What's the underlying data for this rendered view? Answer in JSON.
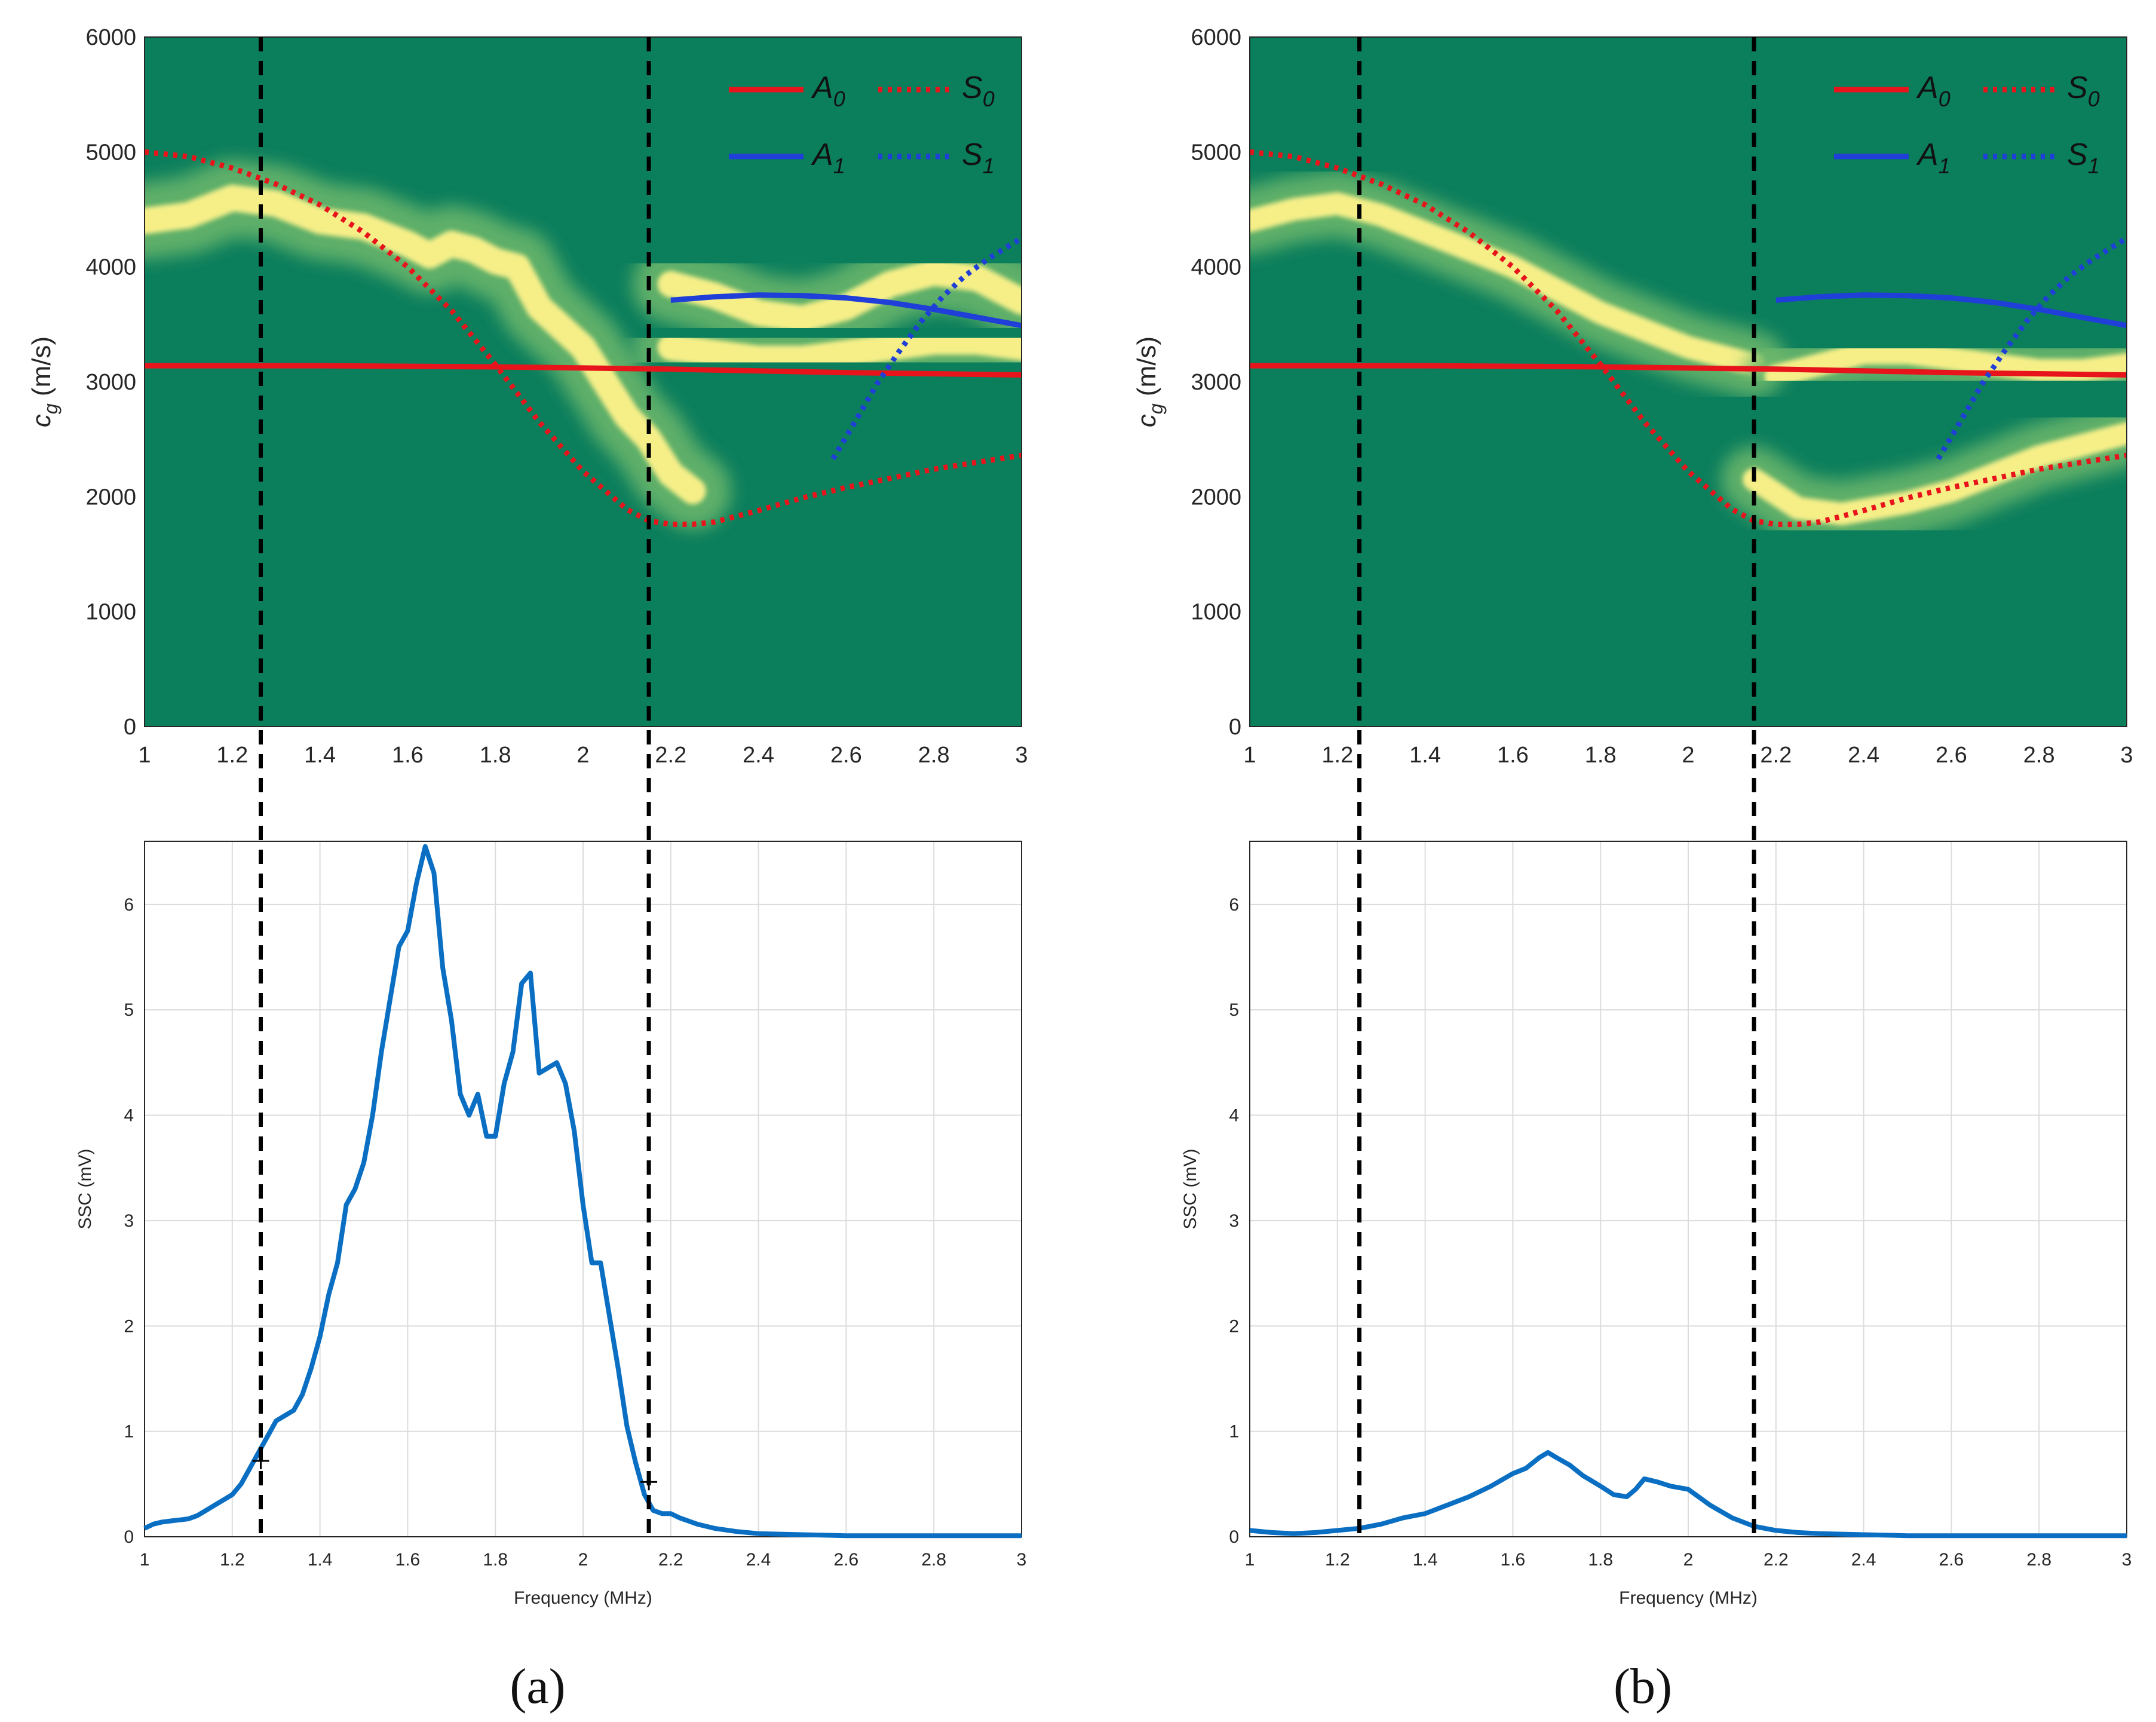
{
  "colors": {
    "map_bg": "#0b7e5c",
    "map_mid": "#6db86c",
    "map_hot": "#fff38a",
    "A0": "#e8141b",
    "S0": "#e8141b",
    "A1": "#1f3fd8",
    "S1": "#1f3fd8",
    "ssc": "#0a6fc2",
    "marker": "#000000"
  },
  "panels": [
    {
      "label": "(a)",
      "chart_data": [
        {
          "type": "heatmap",
          "ylabel_main": "c",
          "ylabel_sub": "g",
          "ylabel_unit": "(m/s)",
          "xlim": [
            1,
            3
          ],
          "ylim": [
            0,
            6000
          ],
          "xticks": [
            "1",
            "1.2",
            "1.4",
            "1.6",
            "1.8",
            "2",
            "2.2",
            "2.4",
            "2.6",
            "2.8",
            "3"
          ],
          "yticks": [
            "0",
            "1000",
            "2000",
            "3000",
            "4000",
            "5000",
            "6000"
          ],
          "legend": [
            {
              "main": "A",
              "sub": "0",
              "style": "solid",
              "colorKey": "A0"
            },
            {
              "main": "S",
              "sub": "0",
              "style": "dotted",
              "colorKey": "S0"
            },
            {
              "main": "A",
              "sub": "1",
              "style": "solid",
              "colorKey": "A1"
            },
            {
              "main": "S",
              "sub": "1",
              "style": "dotted",
              "colorKey": "S1"
            }
          ],
          "curves": {
            "A0": {
              "x": [
                1.0,
                1.4,
                1.8,
                2.2,
                2.6,
                3.0
              ],
              "y": [
                3140,
                3140,
                3130,
                3110,
                3080,
                3060
              ]
            },
            "S0": {
              "x": [
                1.0,
                1.1,
                1.2,
                1.3,
                1.4,
                1.5,
                1.6,
                1.7,
                1.8,
                1.9,
                2.0,
                2.1,
                2.15,
                2.2,
                2.25,
                2.3,
                2.4,
                2.5,
                2.6,
                2.7,
                2.8,
                2.9,
                3.0
              ],
              "y": [
                5000,
                4960,
                4860,
                4720,
                4540,
                4300,
                4000,
                3620,
                3150,
                2650,
                2220,
                1890,
                1790,
                1760,
                1760,
                1780,
                1880,
                1990,
                2080,
                2160,
                2240,
                2300,
                2360
              ]
            },
            "A1": {
              "x": [
                2.2,
                2.3,
                2.4,
                2.5,
                2.6,
                2.7,
                2.8,
                2.9,
                3.0
              ],
              "y": [
                3710,
                3740,
                3755,
                3750,
                3730,
                3690,
                3630,
                3560,
                3490
              ]
            },
            "S1": {
              "x": [
                2.57,
                2.62,
                2.67,
                2.72,
                2.77,
                2.82,
                2.87,
                2.92,
                2.97,
                3.0
              ],
              "y": [
                2330,
                2650,
                2980,
                3260,
                3520,
                3740,
                3920,
                4060,
                4180,
                4250
              ]
            }
          },
          "ridges": [
            {
              "x": [
                1.0,
                1.1,
                1.2,
                1.3,
                1.4,
                1.5,
                1.6,
                1.65,
                1.7,
                1.75,
                1.8,
                1.85,
                1.9,
                2.0,
                2.1,
                2.15,
                2.2,
                2.25
              ],
              "y": [
                4400,
                4450,
                4600,
                4550,
                4400,
                4350,
                4200,
                4100,
                4200,
                4150,
                4050,
                4000,
                3650,
                3300,
                2700,
                2500,
                2200,
                2050
              ]
            },
            {
              "x": [
                2.2,
                2.3,
                2.4,
                2.5,
                2.6,
                2.7,
                2.8,
                2.9,
                3.0
              ],
              "y": [
                3850,
                3750,
                3600,
                3550,
                3650,
                3850,
                3950,
                3900,
                3700
              ]
            },
            {
              "x": [
                2.2,
                2.3,
                2.4,
                2.5,
                2.6,
                2.7,
                2.8,
                2.9,
                3.0
              ],
              "y": [
                3300,
                3250,
                3200,
                3200,
                3250,
                3300,
                3350,
                3350,
                3300
              ]
            }
          ],
          "ridge_width": 420
        },
        {
          "type": "line",
          "xlabel": "Frequency (MHz)",
          "ylabel": "SSC    (mV)",
          "xlim": [
            1,
            3
          ],
          "ylim": [
            0,
            6.6
          ],
          "xticks": [
            "1",
            "1.2",
            "1.4",
            "1.6",
            "1.8",
            "2",
            "2.2",
            "2.4",
            "2.6",
            "2.8",
            "3"
          ],
          "yticks": [
            "0",
            "1",
            "2",
            "3",
            "4",
            "5",
            "6"
          ],
          "grid": true,
          "series": [
            {
              "name": "SSC",
              "x": [
                1.0,
                1.02,
                1.04,
                1.06,
                1.08,
                1.1,
                1.12,
                1.14,
                1.16,
                1.18,
                1.2,
                1.22,
                1.24,
                1.26,
                1.28,
                1.3,
                1.32,
                1.34,
                1.36,
                1.38,
                1.4,
                1.42,
                1.44,
                1.46,
                1.48,
                1.5,
                1.52,
                1.54,
                1.56,
                1.58,
                1.6,
                1.62,
                1.64,
                1.66,
                1.68,
                1.7,
                1.72,
                1.74,
                1.76,
                1.78,
                1.8,
                1.82,
                1.84,
                1.86,
                1.88,
                1.9,
                1.92,
                1.94,
                1.96,
                1.98,
                2.0,
                2.02,
                2.04,
                2.06,
                2.08,
                2.1,
                2.12,
                2.14,
                2.16,
                2.18,
                2.2,
                2.22,
                2.24,
                2.26,
                2.28,
                2.3,
                2.35,
                2.4,
                2.5,
                2.6,
                2.7,
                2.8,
                2.9,
                3.0
              ],
              "y": [
                0.08,
                0.12,
                0.14,
                0.15,
                0.16,
                0.17,
                0.2,
                0.25,
                0.3,
                0.35,
                0.4,
                0.5,
                0.65,
                0.8,
                0.95,
                1.1,
                1.15,
                1.2,
                1.35,
                1.6,
                1.9,
                2.3,
                2.6,
                3.15,
                3.3,
                3.55,
                4.0,
                4.6,
                5.1,
                5.6,
                5.75,
                6.2,
                6.55,
                6.3,
                5.4,
                4.9,
                4.2,
                4.0,
                4.2,
                3.8,
                3.8,
                4.3,
                4.6,
                5.25,
                5.35,
                4.4,
                4.45,
                4.5,
                4.3,
                3.85,
                3.15,
                2.6,
                2.6,
                2.1,
                1.6,
                1.05,
                0.7,
                0.4,
                0.25,
                0.22,
                0.22,
                0.18,
                0.15,
                0.12,
                0.1,
                0.08,
                0.05,
                0.03,
                0.02,
                0.01,
                0.01,
                0.01,
                0.01,
                0.01
              ]
            }
          ],
          "markers": [
            {
              "x": 1.265,
              "y": 0.72
            },
            {
              "x": 2.15,
              "y": 0.52
            }
          ]
        }
      ],
      "guides": [
        1.265,
        2.15
      ]
    },
    {
      "label": "(b)",
      "chart_data": [
        {
          "type": "heatmap",
          "ylabel_main": "c",
          "ylabel_sub": "g",
          "ylabel_unit": "(m/s)",
          "xlim": [
            1,
            3
          ],
          "ylim": [
            0,
            6000
          ],
          "xticks": [
            "1",
            "1.2",
            "1.4",
            "1.6",
            "1.8",
            "2",
            "2.2",
            "2.4",
            "2.6",
            "2.8",
            "3"
          ],
          "yticks": [
            "0",
            "1000",
            "2000",
            "3000",
            "4000",
            "5000",
            "6000"
          ],
          "legend": [
            {
              "main": "A",
              "sub": "0",
              "style": "solid",
              "colorKey": "A0"
            },
            {
              "main": "S",
              "sub": "0",
              "style": "dotted",
              "colorKey": "S0"
            },
            {
              "main": "A",
              "sub": "1",
              "style": "solid",
              "colorKey": "A1"
            },
            {
              "main": "S",
              "sub": "1",
              "style": "dotted",
              "colorKey": "S1"
            }
          ],
          "curves": {
            "A0": {
              "x": [
                1.0,
                1.4,
                1.8,
                2.2,
                2.6,
                3.0
              ],
              "y": [
                3140,
                3140,
                3130,
                3110,
                3080,
                3060
              ]
            },
            "S0": {
              "x": [
                1.0,
                1.1,
                1.2,
                1.3,
                1.4,
                1.5,
                1.6,
                1.7,
                1.8,
                1.9,
                2.0,
                2.1,
                2.15,
                2.2,
                2.25,
                2.3,
                2.4,
                2.5,
                2.6,
                2.7,
                2.8,
                2.9,
                3.0
              ],
              "y": [
                5000,
                4960,
                4860,
                4720,
                4540,
                4300,
                4000,
                3620,
                3150,
                2650,
                2220,
                1890,
                1790,
                1760,
                1760,
                1780,
                1880,
                1990,
                2080,
                2160,
                2240,
                2300,
                2360
              ]
            },
            "A1": {
              "x": [
                2.2,
                2.3,
                2.4,
                2.5,
                2.6,
                2.7,
                2.8,
                2.9,
                3.0
              ],
              "y": [
                3710,
                3740,
                3755,
                3750,
                3730,
                3690,
                3630,
                3560,
                3490
              ]
            },
            "S1": {
              "x": [
                2.57,
                2.62,
                2.67,
                2.72,
                2.77,
                2.82,
                2.87,
                2.92,
                2.97,
                3.0
              ],
              "y": [
                2330,
                2650,
                2980,
                3260,
                3520,
                3740,
                3920,
                4060,
                4180,
                4250
              ]
            }
          },
          "ridges": [
            {
              "x": [
                1.0,
                1.1,
                1.2,
                1.3,
                1.4,
                1.5,
                1.6,
                1.7,
                1.8,
                1.9,
                2.0,
                2.1,
                2.15
              ],
              "y": [
                4400,
                4500,
                4550,
                4450,
                4300,
                4150,
                4000,
                3800,
                3600,
                3450,
                3300,
                3200,
                3150
              ]
            },
            {
              "x": [
                2.2,
                2.3,
                2.4,
                2.5,
                2.6,
                2.7,
                2.8,
                2.9,
                3.0
              ],
              "y": [
                3050,
                3150,
                3250,
                3250,
                3200,
                3150,
                3100,
                3100,
                3150
              ]
            },
            {
              "x": [
                2.15,
                2.25,
                2.35,
                2.5,
                2.6,
                2.7,
                2.8,
                2.9,
                3.0
              ],
              "y": [
                2150,
                1900,
                1850,
                1950,
                2050,
                2200,
                2350,
                2450,
                2550
              ]
            }
          ],
          "ridge_width": 360
        },
        {
          "type": "line",
          "xlabel": "Frequency (MHz)",
          "ylabel": "SSC    (mV)",
          "xlim": [
            1,
            3
          ],
          "ylim": [
            0,
            6.6
          ],
          "xticks": [
            "1",
            "1.2",
            "1.4",
            "1.6",
            "1.8",
            "2",
            "2.2",
            "2.4",
            "2.6",
            "2.8",
            "3"
          ],
          "yticks": [
            "0",
            "1",
            "2",
            "3",
            "4",
            "5",
            "6"
          ],
          "grid": true,
          "series": [
            {
              "name": "SSC",
              "x": [
                1.0,
                1.05,
                1.1,
                1.15,
                1.2,
                1.25,
                1.3,
                1.35,
                1.4,
                1.45,
                1.5,
                1.55,
                1.6,
                1.63,
                1.66,
                1.68,
                1.7,
                1.73,
                1.76,
                1.8,
                1.83,
                1.86,
                1.88,
                1.9,
                1.93,
                1.96,
                2.0,
                2.05,
                2.1,
                2.15,
                2.2,
                2.25,
                2.3,
                2.4,
                2.5,
                2.6,
                2.7,
                2.8,
                2.9,
                3.0
              ],
              "y": [
                0.06,
                0.04,
                0.03,
                0.04,
                0.06,
                0.08,
                0.12,
                0.18,
                0.22,
                0.3,
                0.38,
                0.48,
                0.6,
                0.65,
                0.75,
                0.8,
                0.75,
                0.68,
                0.58,
                0.48,
                0.4,
                0.38,
                0.45,
                0.55,
                0.52,
                0.48,
                0.45,
                0.3,
                0.18,
                0.1,
                0.06,
                0.04,
                0.03,
                0.02,
                0.01,
                0.01,
                0.01,
                0.01,
                0.01,
                0.01
              ]
            }
          ],
          "markers": []
        }
      ],
      "guides": [
        1.25,
        2.15
      ]
    }
  ]
}
